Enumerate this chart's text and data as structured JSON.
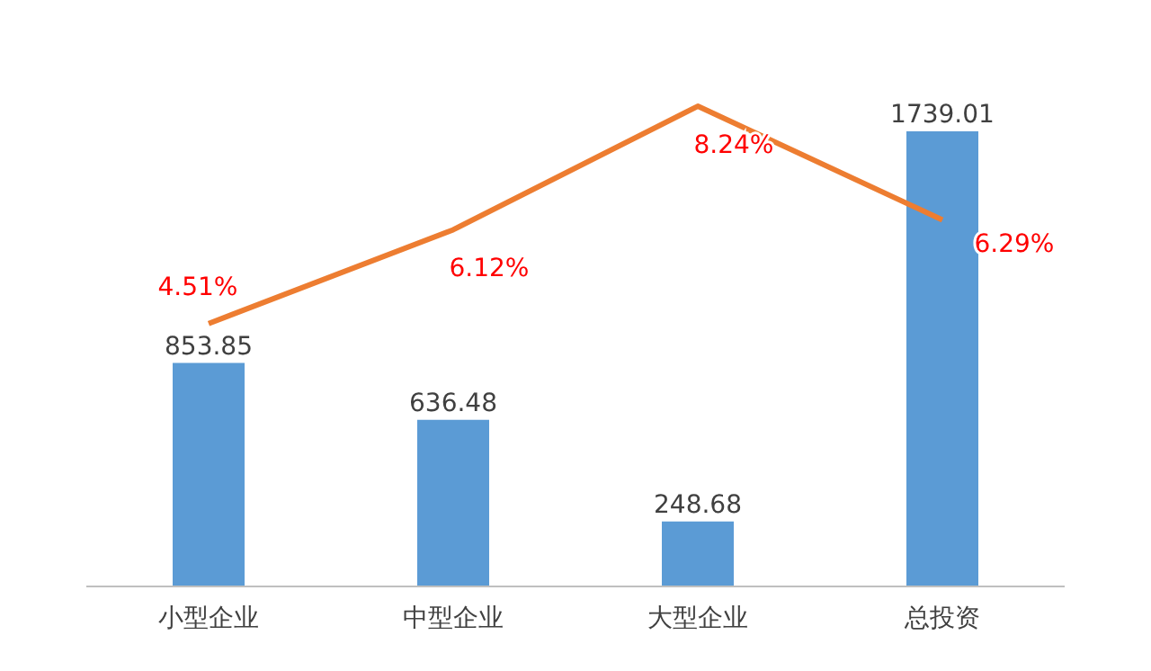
{
  "chart_data": {
    "type": "bar",
    "categories": [
      "小型企业",
      "中型企业",
      "大型企业",
      "总投资"
    ],
    "series": [
      {
        "color": "#5b9bd5",
        "values": [
          853.85,
          636.48,
          248.68,
          1739.01
        ]
      },
      {
        "type": "line",
        "axis": "y2",
        "color": "#ed7d31",
        "values": [
          4.51,
          6.12,
          8.24,
          6.29
        ],
        "value_labels": [
          "4.51%",
          "6.12%",
          "8.24%",
          "6.29%"
        ]
      }
    ],
    "data_labels": true,
    "marker": "none"
  }
}
